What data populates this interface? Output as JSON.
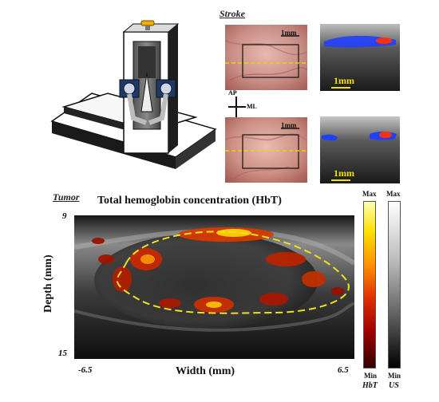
{
  "panels": {
    "stroke": {
      "label": "Stroke",
      "photo_scale_top": "1mm",
      "photo_scale_bottom": "1mm",
      "us_scale_top": "1mm",
      "us_scale_bottom": "1mm",
      "axis_ap": "AP",
      "axis_ml": "ML"
    },
    "tumor": {
      "label": "Tumor",
      "title": "Total hemoglobin concentration (HbT)",
      "ylabel": "Depth (mm)",
      "xlabel": "Width (mm)",
      "y_top": "9",
      "y_bottom": "15",
      "x_left": "-6.5",
      "x_right": "6.5"
    },
    "colorbars": {
      "hbt_max": "Max",
      "hbt_min": "Min",
      "hbt_name": "HbT",
      "us_max": "Max",
      "us_min": "Min",
      "us_name": "US"
    }
  },
  "colors": {
    "dashed_outline": "#f0e020",
    "hbt_high": "#ffffa0",
    "hbt_low": "#8b0000",
    "doppler_blue": "#2040ff",
    "doppler_red": "#ff3010"
  }
}
